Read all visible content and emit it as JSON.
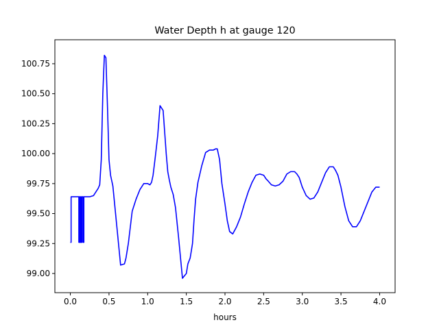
{
  "chart_data": {
    "type": "line",
    "title": "Water Depth h at gauge 120",
    "xlabel": "hours",
    "ylabel": "",
    "xlim": [
      -0.2,
      4.2
    ],
    "ylim": [
      98.84,
      100.95
    ],
    "xticks": [
      0.0,
      0.5,
      1.0,
      1.5,
      2.0,
      2.5,
      3.0,
      3.5,
      4.0
    ],
    "xtick_labels": [
      "0.0",
      "0.5",
      "1.0",
      "1.5",
      "2.0",
      "2.5",
      "3.0",
      "3.5",
      "4.0"
    ],
    "yticks": [
      99.0,
      99.25,
      99.5,
      99.75,
      100.0,
      100.25,
      100.5,
      100.75
    ],
    "ytick_labels": [
      "99.00",
      "99.25",
      "99.50",
      "99.75",
      "100.00",
      "100.25",
      "100.50",
      "100.75"
    ],
    "grid": false,
    "line_color": "#0000ff",
    "series": [
      {
        "x": [
          0.0,
          0.01,
          0.01,
          0.11,
          0.11,
          0.115,
          0.115,
          0.12,
          0.12,
          0.13,
          0.13,
          0.14,
          0.14,
          0.15,
          0.15,
          0.165,
          0.165,
          0.175,
          0.175,
          0.19,
          0.19,
          0.25,
          0.3,
          0.33,
          0.36,
          0.38,
          0.4,
          0.42,
          0.44,
          0.46,
          0.48,
          0.5,
          0.52,
          0.55,
          0.6,
          0.65,
          0.7,
          0.72,
          0.75,
          0.8,
          0.85,
          0.9,
          0.95,
          1.0,
          1.03,
          1.05,
          1.07,
          1.1,
          1.13,
          1.16,
          1.2,
          1.22,
          1.24,
          1.26,
          1.28,
          1.3,
          1.33,
          1.36,
          1.4,
          1.45,
          1.5,
          1.52,
          1.55,
          1.58,
          1.6,
          1.62,
          1.65,
          1.7,
          1.75,
          1.8,
          1.85,
          1.88,
          1.9,
          1.93,
          1.96,
          2.0,
          2.03,
          2.06,
          2.1,
          2.15,
          2.2,
          2.25,
          2.3,
          2.35,
          2.4,
          2.45,
          2.5,
          2.53,
          2.56,
          2.6,
          2.65,
          2.7,
          2.75,
          2.8,
          2.85,
          2.9,
          2.93,
          2.96,
          3.0,
          3.05,
          3.1,
          3.15,
          3.2,
          3.25,
          3.3,
          3.35,
          3.4,
          3.43,
          3.46,
          3.5,
          3.55,
          3.6,
          3.65,
          3.7,
          3.75,
          3.8,
          3.85,
          3.9,
          3.95,
          4.0
        ],
        "y": [
          99.26,
          99.26,
          99.64,
          99.64,
          99.26,
          99.26,
          99.64,
          99.64,
          99.26,
          99.26,
          99.64,
          99.64,
          99.26,
          99.26,
          99.64,
          99.64,
          99.26,
          99.26,
          99.64,
          99.64,
          99.64,
          99.64,
          99.65,
          99.68,
          99.71,
          99.74,
          99.95,
          100.5,
          100.82,
          100.8,
          100.4,
          99.95,
          99.82,
          99.73,
          99.4,
          99.07,
          99.08,
          99.13,
          99.25,
          99.52,
          99.62,
          99.7,
          99.75,
          99.75,
          99.74,
          99.76,
          99.82,
          99.98,
          100.15,
          100.4,
          100.36,
          100.18,
          100.0,
          99.85,
          99.78,
          99.72,
          99.66,
          99.55,
          99.3,
          98.96,
          99.0,
          99.08,
          99.13,
          99.25,
          99.45,
          99.62,
          99.76,
          99.9,
          100.01,
          100.03,
          100.03,
          100.04,
          100.04,
          99.95,
          99.75,
          99.58,
          99.44,
          99.35,
          99.33,
          99.39,
          99.47,
          99.58,
          99.68,
          99.76,
          99.82,
          99.83,
          99.82,
          99.79,
          99.77,
          99.74,
          99.73,
          99.74,
          99.77,
          99.83,
          99.85,
          99.85,
          99.83,
          99.8,
          99.72,
          99.65,
          99.62,
          99.63,
          99.68,
          99.76,
          99.84,
          99.89,
          99.89,
          99.86,
          99.82,
          99.72,
          99.56,
          99.44,
          99.39,
          99.39,
          99.44,
          99.52,
          99.6,
          99.68,
          99.72,
          99.72
        ]
      }
    ]
  }
}
